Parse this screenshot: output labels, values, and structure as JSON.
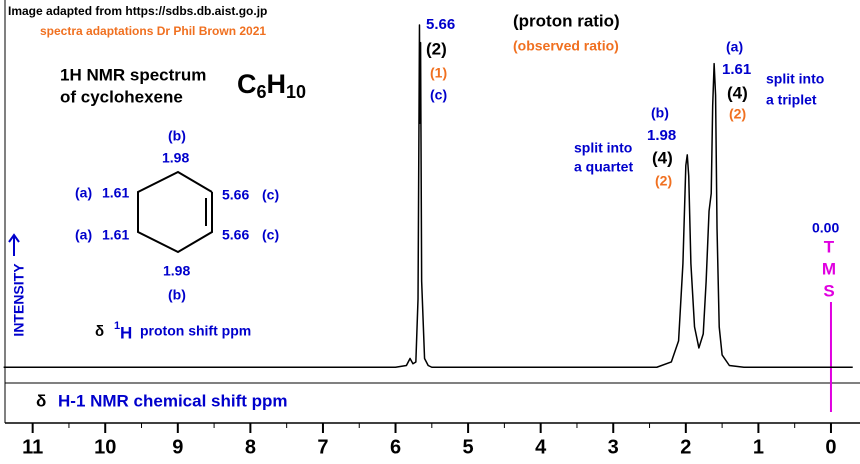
{
  "chart_data": {
    "type": "line",
    "color": "#000000",
    "x": [
      11.4,
      6.0,
      5.85,
      5.8,
      5.76,
      5.72,
      5.69,
      5.67,
      5.665,
      5.655,
      5.64,
      5.6,
      5.55,
      5.5,
      2.4,
      2.2,
      2.1,
      2.04,
      2.0,
      1.98,
      1.96,
      1.93,
      1.88,
      1.82,
      1.76,
      1.72,
      1.68,
      1.65,
      1.63,
      1.61,
      1.59,
      1.57,
      1.54,
      1.5,
      1.4,
      1.2,
      -0.3
    ],
    "values": [
      0.5,
      0.5,
      1,
      3,
      1.5,
      2,
      20,
      98,
      70,
      93,
      25,
      3,
      1,
      0.5,
      0.5,
      2,
      8,
      30,
      58,
      61,
      55,
      30,
      12,
      6,
      10,
      25,
      45,
      50,
      75,
      87,
      78,
      40,
      12,
      4,
      1,
      0.5,
      0.5
    ],
    "xlim": [
      11.45,
      -0.4
    ],
    "ylim": [
      0,
      100
    ],
    "xticks": [
      11,
      10,
      9,
      8,
      7,
      6,
      5,
      4,
      3,
      2,
      1,
      0
    ],
    "minor_xticks": [
      10.5,
      9.5,
      8.5,
      7.5,
      6.5,
      5.5,
      4.5,
      3.5,
      2.5,
      1.5,
      0.5
    ],
    "x_label": {
      "delta": "δ",
      "text": "H-1 NMR chemical shift  ppm"
    },
    "y_label": "INTENSITY",
    "source": "Image adapted from https://sdbs.db.aist.go.jp",
    "credit": "spectra adaptations Dr Phil Brown 2021",
    "title": [
      "1H NMR spectrum",
      "of cyclohexene"
    ],
    "formula": [
      {
        "text": "C"
      },
      {
        "text": "6",
        "sub": true
      },
      {
        "text": "H"
      },
      {
        "text": "10",
        "sub": true
      }
    ],
    "legend": {
      "ratio": "(proton ratio)",
      "observed": "(observed ratio)"
    },
    "annotations": {
      "c": {
        "shift": "5.66",
        "ratio": "(2)",
        "observed": "(1)",
        "label": "(c)"
      },
      "b": {
        "label": "(b)",
        "shift": "1.98",
        "ratio": "(4)",
        "observed": "(2)",
        "note": [
          "split into",
          "a quartet"
        ]
      },
      "a": {
        "label": "(a)",
        "shift": "1.61",
        "ratio": "(4)",
        "observed": "(2)",
        "note": [
          "split into",
          "a triplet"
        ]
      },
      "tms": {
        "shift": "0.00",
        "letters": [
          "T",
          "M",
          "S"
        ],
        "x": 0
      }
    },
    "structure": {
      "top": [
        "(b)",
        "1.98"
      ],
      "bottom": [
        "1.98",
        "(b)"
      ],
      "upper_left": [
        "(a)",
        "1.61"
      ],
      "lower_left": [
        "(a)",
        "1.61"
      ],
      "upper_right": [
        "5.66",
        "(c)"
      ],
      "lower_right": [
        "5.66",
        "(c)"
      ],
      "caption": {
        "delta": "δ",
        "isotope": "1",
        "nucleus": "H",
        "text": "proton shift  ppm"
      }
    }
  }
}
